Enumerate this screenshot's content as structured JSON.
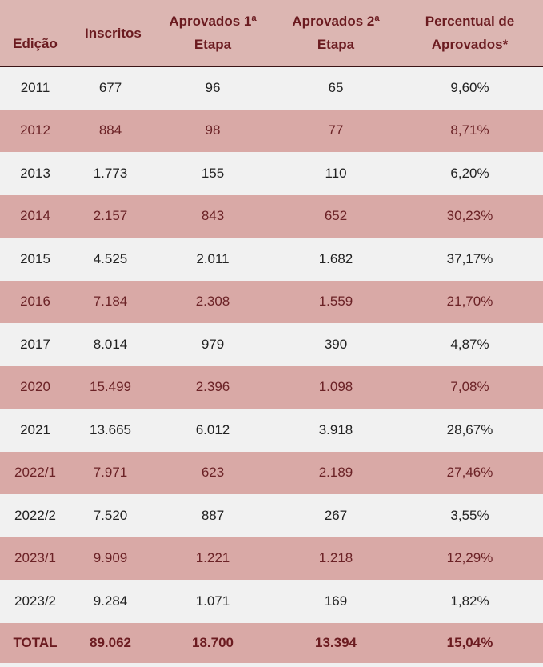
{
  "table": {
    "header": [
      "Edição",
      "Inscritos",
      "Aprovados 1ª Etapa",
      "Aprovados 2ª Etapa",
      "Percentual de Aprovados*"
    ],
    "rows": [
      [
        "2011",
        "677",
        "96",
        "65",
        "9,60%"
      ],
      [
        "2012",
        "884",
        "98",
        "77",
        "8,71%"
      ],
      [
        "2013",
        "1.773",
        "155",
        "110",
        "6,20%"
      ],
      [
        "2014",
        "2.157",
        "843",
        "652",
        "30,23%"
      ],
      [
        "2015",
        "4.525",
        "2.011",
        "1.682",
        "37,17%"
      ],
      [
        "2016",
        "7.184",
        "2.308",
        "1.559",
        "21,70%"
      ],
      [
        "2017",
        "8.014",
        "979",
        "390",
        "4,87%"
      ],
      [
        "2020",
        "15.499",
        "2.396",
        "1.098",
        "7,08%"
      ],
      [
        "2021",
        "13.665",
        "6.012",
        "3.918",
        "28,67%"
      ],
      [
        "2022/1",
        "7.971",
        "623",
        "2.189",
        "27,46%"
      ],
      [
        "2022/2",
        "7.520",
        "887",
        "267",
        "3,55%"
      ],
      [
        "2023/1",
        "9.909",
        "1.221",
        "1.218",
        "12,29%"
      ],
      [
        "2023/2",
        "9.284",
        "1.071",
        "169",
        "1,82%"
      ]
    ],
    "total": [
      "TOTAL",
      "89.062",
      "18.700",
      "13.394",
      "15,04%"
    ]
  }
}
